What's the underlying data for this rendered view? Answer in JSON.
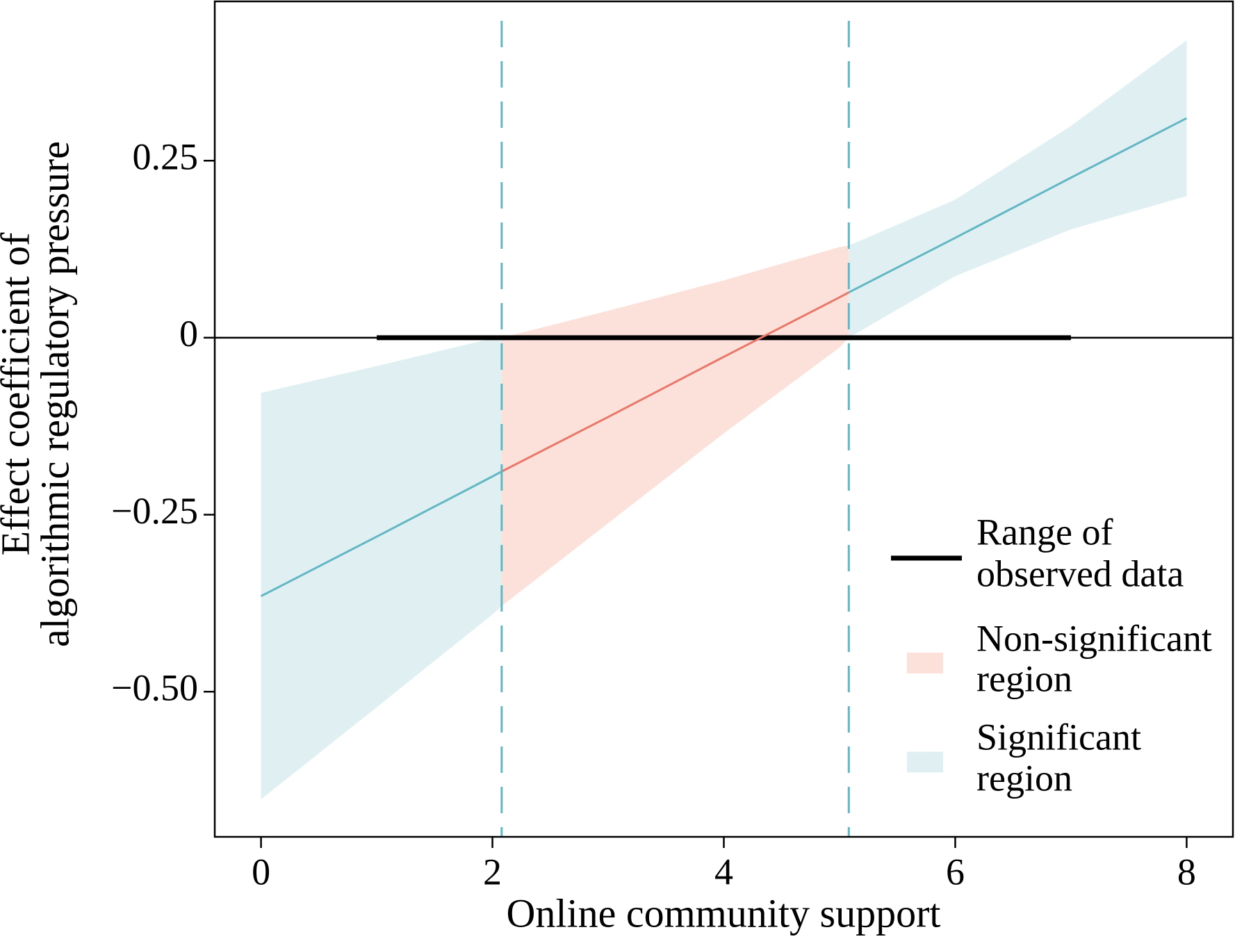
{
  "chart_data": {
    "type": "johnson-neyman",
    "x_label": "Online community support",
    "y_label": [
      "Effect coefficient of",
      "algorithmic regulatory pressure"
    ],
    "x": [
      0,
      1,
      2,
      2.08,
      3,
      4,
      5,
      5.08,
      6,
      7,
      8
    ],
    "estimate": [
      -0.365,
      -0.281,
      -0.196,
      -0.189,
      -0.112,
      -0.027,
      0.057,
      0.064,
      0.141,
      0.226,
      0.31
    ],
    "lower": [
      -0.652,
      -0.522,
      -0.391,
      -0.379,
      -0.262,
      -0.135,
      -0.014,
      0,
      0.087,
      0.153,
      0.2
    ],
    "upper": [
      -0.078,
      -0.04,
      -0.001,
      0,
      0.038,
      0.081,
      0.128,
      0.13,
      0.195,
      0.299,
      0.42
    ],
    "thresholds": [
      2.08,
      5.08
    ],
    "observed_range": [
      1,
      7
    ],
    "reference_line": 0,
    "legend": [
      {
        "name": [
          "Range of",
          "observed data"
        ],
        "color": "#000000",
        "kind": "line"
      },
      {
        "name": [
          "Non-significant",
          "region"
        ],
        "color": "#fbe1d9",
        "line_color": "#e8786a",
        "kind": "band"
      },
      {
        "name": [
          "Significant",
          "region"
        ],
        "color": "#e0f0f2",
        "line_color": "#63b6c4",
        "kind": "band"
      }
    ],
    "xlim": [
      -0.4,
      8.4
    ],
    "ylim": [
      -0.705,
      0.475
    ],
    "xticks": [
      0,
      2,
      4,
      6,
      8
    ],
    "yticks": [
      {
        "value": -0.5,
        "label": "−0.50"
      },
      {
        "value": -0.25,
        "label": "−0.25"
      },
      0,
      0.25
    ]
  }
}
